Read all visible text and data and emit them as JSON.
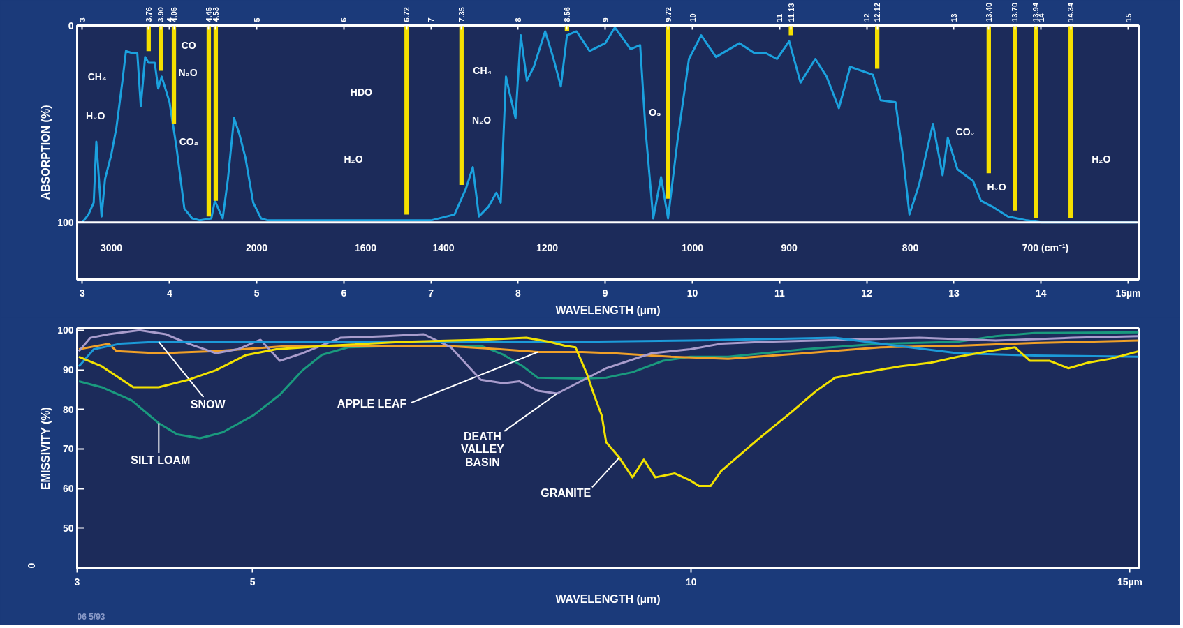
{
  "chart_data": [
    {
      "type": "line",
      "xlabel": "WAVELENGTH (µm)",
      "ylabel": "ABSORPTION (%)",
      "xlim": [
        2.94,
        15.12
      ],
      "xticks": [
        3,
        4,
        5,
        6,
        7,
        8,
        9,
        10,
        11,
        12,
        13,
        14,
        {
          "value": 15,
          "label": "15µm"
        }
      ],
      "ylim": [
        129,
        0
      ],
      "yticks": [
        0,
        100
      ],
      "x2lim": [
        2.94,
        15.12
      ],
      "x2ticks": [
        3,
        4,
        5,
        6,
        7,
        8,
        9,
        10,
        11,
        12,
        13,
        14,
        15,
        {
          "value": 3.76,
          "label": "3.76"
        },
        {
          "value": 3.9,
          "label": "3.90"
        },
        {
          "value": 4.05,
          "label": "4.05"
        },
        {
          "value": 4.45,
          "label": "4.45"
        },
        {
          "value": 4.53,
          "label": "4.53"
        },
        {
          "value": 6.72,
          "label": "6.72"
        },
        {
          "value": 7.35,
          "label": "7.35"
        },
        {
          "value": 8.56,
          "label": "8.56"
        },
        {
          "value": 9.72,
          "label": "9.72"
        },
        {
          "value": 11.13,
          "label": "11.13"
        },
        {
          "value": 12.12,
          "label": "12.12"
        },
        {
          "value": 13.4,
          "label": "13.40"
        },
        {
          "value": 13.7,
          "label": "13.70"
        },
        {
          "value": 13.94,
          "label": "13.94"
        },
        {
          "value": 14.34,
          "label": "14.34"
        }
      ],
      "ref_lines": [
        {
          "axis": "y",
          "value": 100,
          "color": "#ffffff"
        }
      ],
      "series": [
        {
          "color": "#1ba1de",
          "x": [
            3.0,
            3.07,
            3.13,
            3.16,
            3.22,
            3.26,
            3.33,
            3.39,
            3.46,
            3.5,
            3.57,
            3.63,
            3.67,
            3.72,
            3.76,
            3.83,
            3.87,
            3.91,
            4.0,
            4.08,
            4.17,
            4.26,
            4.35,
            4.48,
            4.52,
            4.61,
            4.67,
            4.74,
            4.8,
            4.87,
            4.96,
            5.05,
            5.13,
            7.0,
            7.27,
            7.4,
            7.48,
            7.55,
            7.66,
            7.75,
            7.8,
            7.86,
            7.9,
            7.97,
            8.03,
            8.1,
            8.18,
            8.31,
            8.4,
            8.49,
            8.56,
            8.67,
            8.82,
            9.0,
            9.11,
            9.29,
            9.4,
            9.46,
            9.55,
            9.64,
            9.72,
            9.83,
            9.96,
            10.1,
            10.27,
            10.54,
            10.71,
            10.84,
            10.97,
            11.11,
            11.24,
            11.41,
            11.54,
            11.68,
            11.81,
            12.07,
            12.16,
            12.33,
            12.42,
            12.49,
            12.6,
            12.76,
            12.87,
            12.93,
            13.04,
            13.22,
            13.31,
            13.44,
            13.62,
            13.84,
            14.0,
            15.1
          ],
          "values": [
            100,
            96,
            90,
            59,
            97,
            78,
            66,
            52,
            28,
            13,
            14,
            14,
            41,
            16,
            19,
            19,
            32,
            26,
            39,
            62,
            93,
            98,
            99,
            98,
            89,
            98,
            78,
            47,
            55,
            67,
            90,
            98,
            99,
            99,
            96,
            83,
            72,
            97,
            92,
            85,
            90,
            26,
            34,
            47,
            5,
            28,
            21,
            3,
            16,
            31,
            5,
            3,
            13,
            9,
            1,
            12,
            10,
            52,
            98,
            77,
            98,
            58,
            17,
            5,
            16,
            9,
            14,
            14,
            17,
            8,
            29,
            17,
            26,
            42,
            21,
            25,
            38,
            39,
            68,
            96,
            81,
            50,
            76,
            57,
            73,
            79,
            89,
            92,
            97,
            99,
            100,
            100
          ]
        },
        {
          "type": "bar",
          "color": "#f5e000",
          "x": [
            3.76,
            3.9,
            4.05,
            4.45,
            4.53,
            6.72,
            7.35,
            8.56,
            9.72,
            11.13,
            12.12,
            13.4,
            13.7,
            13.94,
            14.34
          ],
          "values": [
            13,
            23,
            50,
            97,
            89,
            96,
            81,
            3,
            88,
            5,
            22,
            75,
            94,
            98,
            98
          ]
        }
      ],
      "annotations": [
        "CH₄",
        "H₂O",
        "CO",
        "N₂O",
        "CO₂",
        "HDO",
        "H₂O",
        "CH₄",
        "N₂O",
        "O₃",
        "CO₂",
        "H₂O",
        "H₂O",
        "3000",
        "2000",
        "1600",
        "1400",
        "1200",
        "1000",
        "900",
        "800",
        "700 (cm⁻¹)"
      ]
    },
    {
      "type": "line",
      "xlabel": "WAVELENGTH (µm)",
      "ylabel": "EMISSIVITY (%)",
      "xlim": [
        3,
        15.1
      ],
      "xticks": [
        3,
        5,
        10,
        {
          "value": 15,
          "label": "15µm"
        }
      ],
      "ylim": [
        39.8,
        100.5
      ],
      "yticks": [
        50,
        60,
        70,
        80,
        90,
        100
      ],
      "series": [
        {
          "name": "SILT LOAM",
          "color": "#1a9a7e",
          "x": [
            3.02,
            3.28,
            3.62,
            3.93,
            4.14,
            4.4,
            4.66,
            5.01,
            5.31,
            5.57,
            5.79,
            6.09,
            6.74,
            7.6,
            7.86,
            8.08,
            8.25,
            8.76,
            9.03,
            9.33,
            9.68,
            9.99,
            10.42,
            11.29,
            12.16,
            13.04,
            13.47,
            13.91,
            15.1
          ],
          "values": [
            87.1,
            85.6,
            82.3,
            76.5,
            73.7,
            72.7,
            74.2,
            78.5,
            83.7,
            89.9,
            93.8,
            95.7,
            96.1,
            96.1,
            93.8,
            90.9,
            88.0,
            87.8,
            88.0,
            89.4,
            92.3,
            93.3,
            93.3,
            95.2,
            96.6,
            97.1,
            98.5,
            99.3,
            99.5
          ]
        },
        {
          "name": "APPLE LEAF",
          "color": "#f0a028",
          "x": [
            3.02,
            3.36,
            3.45,
            3.93,
            4.58,
            5.44,
            6.31,
            7.17,
            7.82,
            8.25,
            8.76,
            9.12,
            9.77,
            10.42,
            11.29,
            12.16,
            13.04,
            13.91,
            15.1
          ],
          "values": [
            95.2,
            96.6,
            94.7,
            94.2,
            94.7,
            96.1,
            96.1,
            96.1,
            95.2,
            94.5,
            94.5,
            94.2,
            93.3,
            92.8,
            94.2,
            95.7,
            96.1,
            96.8,
            97.4
          ]
        },
        {
          "name": "DEATH VALLEY BASIN",
          "color": "#a89ccc",
          "x": [
            3.02,
            3.15,
            3.36,
            3.71,
            4.01,
            4.27,
            4.58,
            4.83,
            5.09,
            5.31,
            5.57,
            6.0,
            6.52,
            6.95,
            7.26,
            7.6,
            7.86,
            8.04,
            8.25,
            8.47,
            9.03,
            9.55,
            9.99,
            10.34,
            10.86,
            11.73,
            12.6,
            13.47,
            14.34,
            15.1
          ],
          "values": [
            94.7,
            98.1,
            99.0,
            100,
            99.0,
            96.6,
            94.2,
            95.2,
            97.6,
            92.3,
            94.2,
            98.1,
            98.5,
            99.0,
            95.7,
            87.5,
            86.6,
            87.1,
            84.7,
            84.0,
            90.4,
            94.2,
            95.2,
            96.6,
            97.1,
            97.6,
            98.1,
            97.4,
            98.1,
            98.5
          ]
        },
        {
          "name": "SNOW",
          "color": "#1c9ad8",
          "x": [
            3.02,
            3.19,
            3.49,
            3.93,
            8.76,
            9.99,
            11.64,
            12.16,
            13.04,
            13.91,
            15.1
          ],
          "values": [
            90.9,
            95.2,
            96.6,
            97.1,
            97.1,
            97.4,
            98.1,
            96.6,
            94.2,
            93.6,
            93.3
          ]
        },
        {
          "name": "GRANITE",
          "color": "#f2e200",
          "x": [
            3.02,
            3.28,
            3.64,
            3.93,
            4.27,
            4.58,
            4.92,
            5.27,
            5.87,
            6.74,
            7.6,
            8.12,
            8.38,
            8.56,
            8.68,
            8.81,
            8.9,
            8.98,
            9.03,
            9.18,
            9.33,
            9.46,
            9.59,
            9.81,
            9.99,
            10.09,
            10.22,
            10.34,
            10.77,
            11.12,
            11.42,
            11.64,
            11.99,
            12.38,
            12.73,
            13.04,
            13.39,
            13.69,
            13.86,
            14.08,
            14.3,
            14.52,
            14.78,
            15.1
          ],
          "values": [
            93.3,
            90.9,
            85.6,
            85.6,
            87.5,
            89.9,
            93.7,
            95.2,
            96.1,
            97.1,
            97.6,
            98.1,
            97.1,
            96.1,
            95.7,
            89.0,
            83.2,
            78.4,
            71.7,
            67.8,
            62.8,
            67.3,
            62.8,
            63.8,
            62.0,
            60.6,
            60.6,
            64.4,
            72.6,
            78.9,
            84.6,
            88.0,
            89.4,
            90.9,
            91.8,
            93.3,
            94.7,
            95.7,
            92.3,
            92.3,
            90.4,
            91.8,
            92.8,
            94.7
          ]
        }
      ],
      "annotations": [
        "0",
        "06 5/93"
      ]
    }
  ]
}
